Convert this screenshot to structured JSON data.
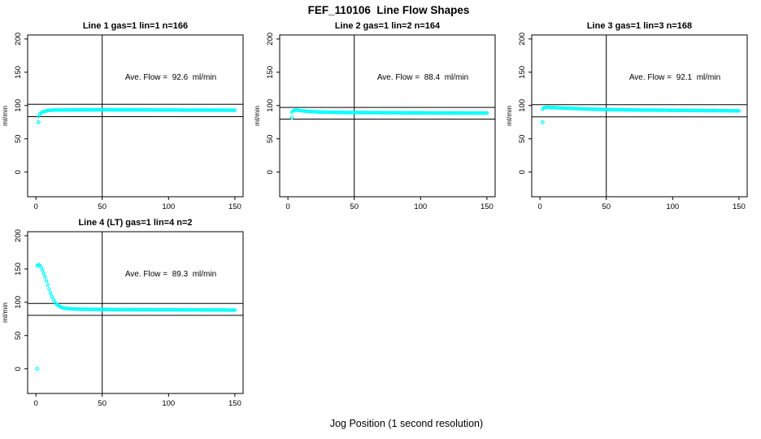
{
  "page": {
    "title": "FEF_110106  Line Flow Shapes",
    "x_axis_label": "Jog Position (1 second resolution)",
    "background_color": "#ffffff",
    "point_color": "#00ffff",
    "axis_color": "#000000"
  },
  "chart_data": [
    {
      "type": "scatter",
      "title": "Line 1 gas=1 lin=1 n=166",
      "annotation": "Ave. Flow =  92.6  ml/min",
      "ave_flow_ml_min": 92.6,
      "n": 166,
      "ylabel": "ml/min",
      "xticks": [
        0,
        50,
        100,
        150
      ],
      "yticks": [
        0,
        50,
        100,
        150,
        200
      ],
      "ref_hlines": [
        101.9,
        83.3
      ],
      "ref_vline": 50,
      "profile": [
        [
          2,
          84
        ],
        [
          3,
          87
        ],
        [
          4,
          89
        ],
        [
          6,
          91
        ],
        [
          9,
          92.5
        ],
        [
          14,
          93.3
        ],
        [
          50,
          93.5
        ],
        [
          100,
          93.3
        ],
        [
          150,
          92.9
        ]
      ],
      "outliers": [
        [
          2,
          75
        ]
      ]
    },
    {
      "type": "scatter",
      "title": "Line 2 gas=1 lin=2 n=164",
      "annotation": "Ave. Flow =  88.4  ml/min",
      "ave_flow_ml_min": 88.4,
      "n": 164,
      "ylabel": "ml/min",
      "xticks": [
        0,
        50,
        100,
        150
      ],
      "yticks": [
        0,
        50,
        100,
        150,
        200
      ],
      "ref_hlines": [
        97.2,
        79.6
      ],
      "ref_vline": 50,
      "profile": [
        [
          3,
          90
        ],
        [
          4,
          92
        ],
        [
          6,
          93.3
        ],
        [
          10,
          92.3
        ],
        [
          15,
          91.2
        ],
        [
          25,
          90.2
        ],
        [
          40,
          89.6
        ],
        [
          70,
          89.2
        ],
        [
          110,
          88.9
        ],
        [
          150,
          88.6
        ]
      ],
      "outliers": [
        [
          3,
          82
        ]
      ]
    },
    {
      "type": "scatter",
      "title": "Line 3 gas=1 lin=3 n=168",
      "annotation": "Ave. Flow =  92.1  ml/min",
      "ave_flow_ml_min": 92.1,
      "n": 168,
      "ylabel": "ml/min",
      "xticks": [
        0,
        50,
        100,
        150
      ],
      "yticks": [
        0,
        50,
        100,
        150,
        200
      ],
      "ref_hlines": [
        101.3,
        82.9
      ],
      "ref_vline": 50,
      "profile": [
        [
          2,
          94.5
        ],
        [
          3,
          96.5
        ],
        [
          5,
          97.3
        ],
        [
          10,
          96.8
        ],
        [
          20,
          96
        ],
        [
          35,
          94.8
        ],
        [
          50,
          94
        ],
        [
          70,
          93.3
        ],
        [
          100,
          92.8
        ],
        [
          130,
          92.3
        ],
        [
          150,
          92
        ]
      ],
      "outliers": [
        [
          2,
          75
        ]
      ]
    },
    {
      "type": "scatter",
      "title": "Line 4 (LT) gas=1 lin=4 n=2",
      "annotation": "Ave. Flow =  89.3  ml/min",
      "ave_flow_ml_min": 89.3,
      "n": 2,
      "ylabel": "ml/min",
      "xticks": [
        0,
        50,
        100,
        150
      ],
      "yticks": [
        0,
        50,
        100,
        150,
        200
      ],
      "ref_hlines": [
        98.2,
        80.4
      ],
      "ref_vline": 50,
      "profile": [
        [
          1,
          155
        ],
        [
          2,
          156.5
        ],
        [
          3,
          155.5
        ],
        [
          4,
          152
        ],
        [
          5,
          148
        ],
        [
          6,
          143
        ],
        [
          7,
          138
        ],
        [
          8,
          132
        ],
        [
          9,
          126
        ],
        [
          10,
          120
        ],
        [
          11,
          114
        ],
        [
          12,
          109
        ],
        [
          13,
          105
        ],
        [
          14,
          101.5
        ],
        [
          15,
          98.5
        ],
        [
          16,
          96.5
        ],
        [
          17,
          95
        ],
        [
          18,
          93.8
        ],
        [
          19,
          92.8
        ],
        [
          20,
          92
        ],
        [
          22,
          91
        ],
        [
          25,
          90.3
        ],
        [
          30,
          89.8
        ],
        [
          40,
          89.3
        ],
        [
          60,
          89
        ],
        [
          90,
          88.7
        ],
        [
          120,
          88.5
        ],
        [
          150,
          88.3
        ]
      ],
      "outliers": [
        [
          1,
          0
        ]
      ]
    }
  ]
}
